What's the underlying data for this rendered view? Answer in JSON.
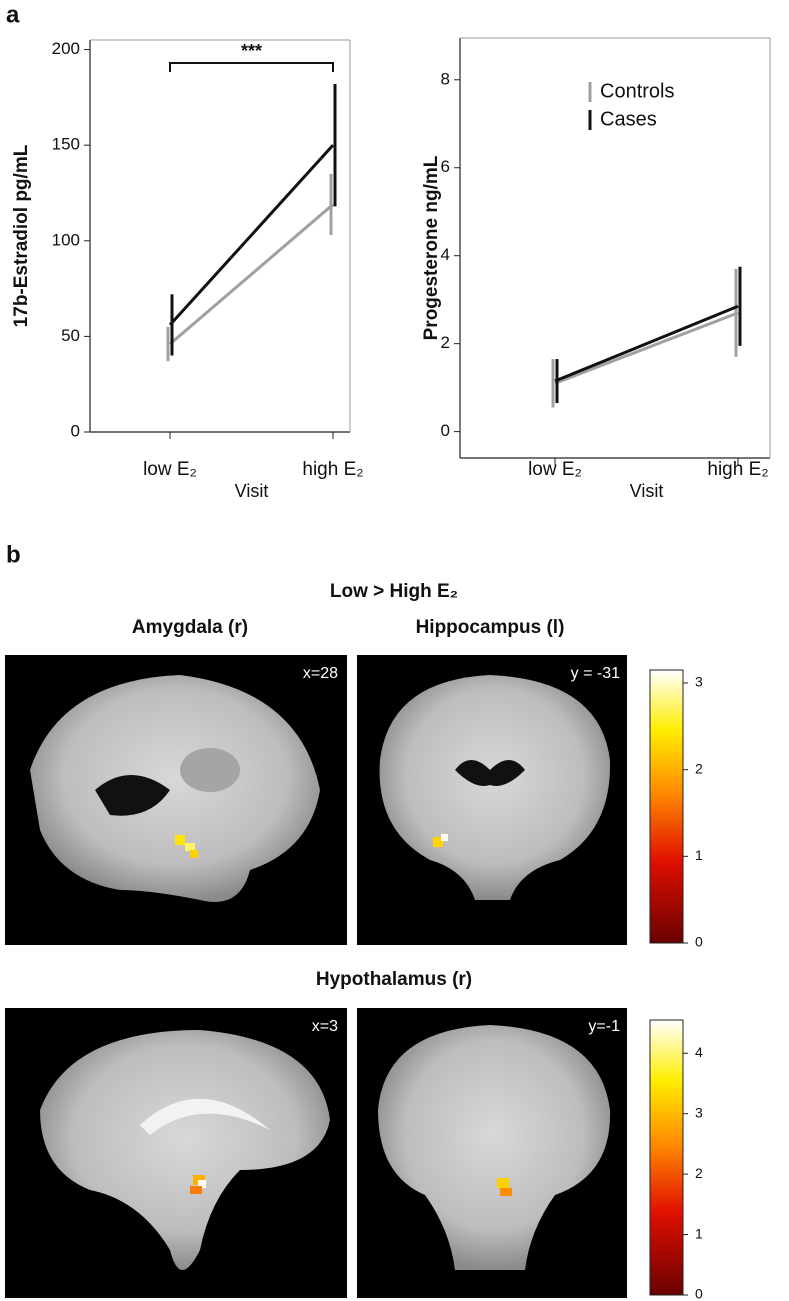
{
  "panel_labels": [
    "a",
    "b"
  ],
  "chart_data": [
    {
      "type": "line",
      "ylabel": "17b-Estradiol pg/mL",
      "xlabel": "Visit",
      "categories": [
        "low E₂",
        "high E₂"
      ],
      "series": [
        {
          "name": "Controls",
          "color": "#a0a0a0",
          "values": [
            46,
            119
          ],
          "errors": [
            9,
            16
          ]
        },
        {
          "name": "Cases",
          "color": "#111111",
          "values": [
            56,
            150
          ],
          "errors": [
            16,
            32
          ]
        }
      ],
      "ylim": [
        0,
        205
      ],
      "yticks": [
        0,
        50,
        100,
        150,
        200
      ],
      "annotation": "***",
      "legend": false
    },
    {
      "type": "line",
      "ylabel": "Progesterone ng/mL",
      "xlabel": "Visit",
      "categories": [
        "low E₂",
        "high E₂"
      ],
      "series": [
        {
          "name": "Controls",
          "color": "#a0a0a0",
          "values": [
            1.1,
            2.7
          ],
          "errors": [
            0.55,
            1.0
          ]
        },
        {
          "name": "Cases",
          "color": "#111111",
          "values": [
            1.15,
            2.85
          ],
          "errors": [
            0.5,
            0.9
          ]
        }
      ],
      "ylim": [
        -0.6,
        8.95
      ],
      "yticks": [
        0,
        2,
        4,
        6,
        8
      ],
      "legend": true
    }
  ],
  "brain_figure": {
    "title": "Low > High E₂",
    "row1_titles": [
      "Amygdala (r)",
      "Hippocampus (l)"
    ],
    "row2_title": "Hypothalamus (r)",
    "image_labels": [
      "x=28",
      "y = -31",
      "x=3",
      "y=-1"
    ],
    "colorbars": [
      {
        "clim": [
          0,
          3.15
        ],
        "ticks": [
          0,
          1,
          2,
          3
        ]
      },
      {
        "clim": [
          0,
          4.55
        ],
        "ticks": [
          0,
          1,
          2,
          3,
          4
        ]
      }
    ]
  }
}
